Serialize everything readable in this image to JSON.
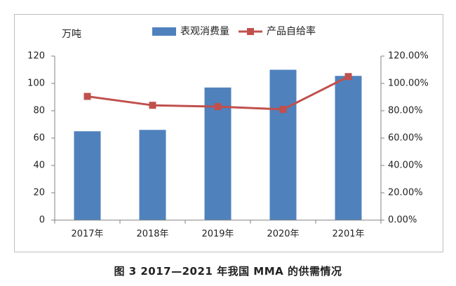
{
  "caption": "图 3 2017—2021 年我国 MMA 的供需情况",
  "chart_data": {
    "type": "bar",
    "categories": [
      "2017年",
      "2018年",
      "2019年",
      "2020年",
      "2201年"
    ],
    "series": [
      {
        "name": "表观消费量",
        "type": "bar",
        "axis": "left",
        "color": "#4f81bd",
        "values": [
          65,
          66,
          97,
          110,
          105.5
        ]
      },
      {
        "name": "产品自给率",
        "type": "line",
        "axis": "right",
        "color": "#c0504d",
        "values": [
          0.905,
          0.84,
          0.83,
          0.81,
          1.05
        ]
      }
    ],
    "ylabel": "万吨",
    "ylim": [
      0,
      120
    ],
    "yticks": [
      "0",
      "20",
      "40",
      "60",
      "80",
      "100",
      "120"
    ],
    "y2lim": [
      0,
      1.2
    ],
    "y2ticks": [
      "0.00%",
      "20.00%",
      "40.00%",
      "60.00%",
      "80.00%",
      "100.00%",
      "120.00%"
    ],
    "grid": false,
    "legend": "top"
  }
}
